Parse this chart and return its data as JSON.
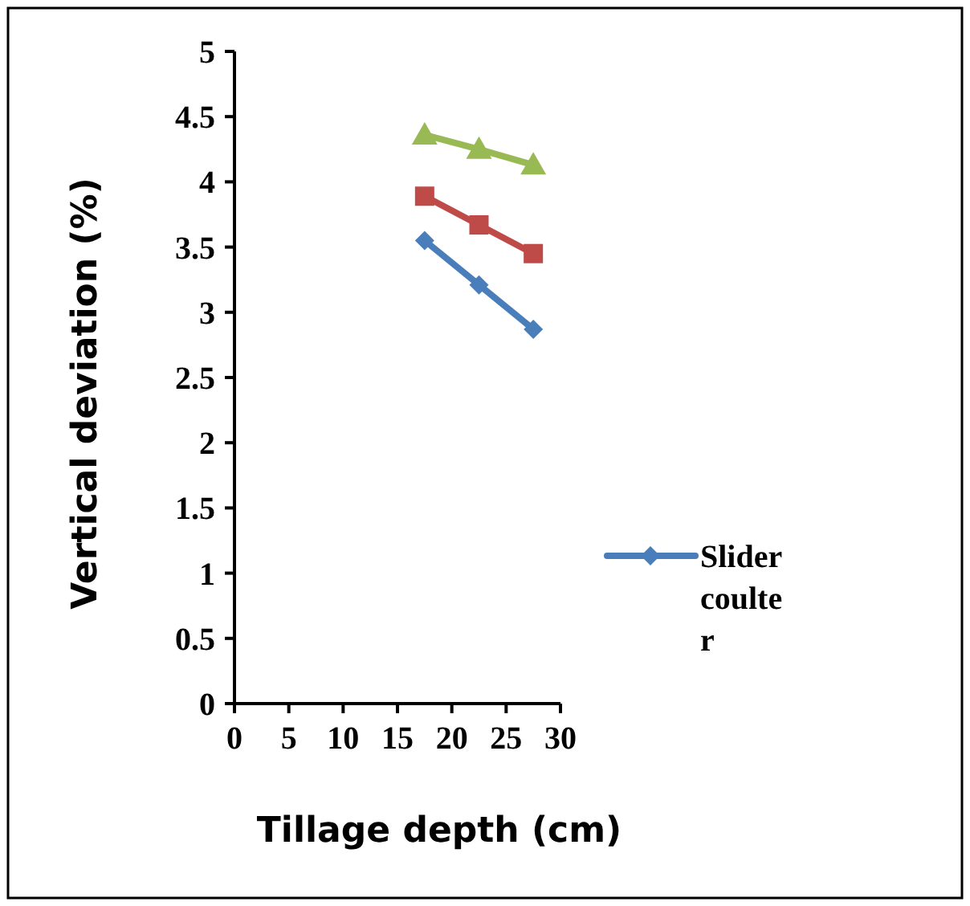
{
  "chart_data": {
    "type": "line",
    "xlabel": "Tillage depth (cm)",
    "ylabel": "Vertical deviation (%)",
    "x": [
      17.5,
      22.5,
      27.5
    ],
    "series": [
      {
        "name": "Slider coulter",
        "color": "#4a7ebb",
        "marker": "diamond",
        "values": [
          3.55,
          3.21,
          2.87
        ]
      },
      {
        "color": "#be4b48",
        "marker": "square",
        "values": [
          3.89,
          3.67,
          3.45
        ]
      },
      {
        "color": "#98b954",
        "marker": "triangle",
        "values": [
          4.36,
          4.25,
          4.13
        ]
      }
    ],
    "xlim": [
      0,
      30
    ],
    "xticks": [
      0,
      5,
      10,
      15,
      20,
      25,
      30
    ],
    "ylim": [
      0,
      5
    ],
    "yticks": [
      0,
      0.5,
      1,
      1.5,
      2,
      2.5,
      3,
      3.5,
      4,
      4.5,
      5
    ],
    "legend": "right",
    "grid": false,
    "line_style": "solid"
  }
}
